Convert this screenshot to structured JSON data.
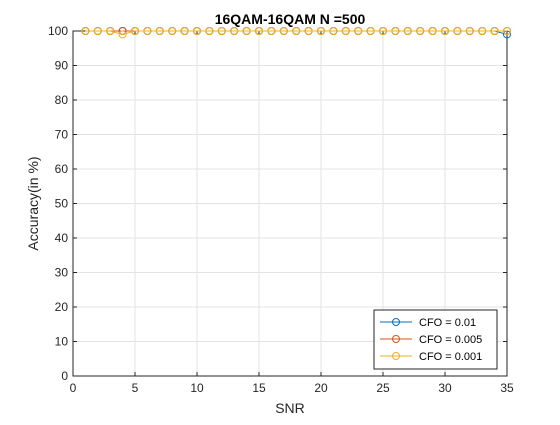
{
  "chart_data": {
    "type": "line",
    "title": "16QAM-16QAM N =500",
    "xlabel": "SNR",
    "ylabel": "Accuracy(in %)",
    "xlim": [
      0,
      35
    ],
    "ylim": [
      0,
      100
    ],
    "xticks": [
      0,
      5,
      10,
      15,
      20,
      25,
      30,
      35
    ],
    "yticks": [
      0,
      10,
      20,
      30,
      40,
      50,
      60,
      70,
      80,
      90,
      100
    ],
    "grid": true,
    "legend_position": "bottom-right",
    "marker": "circle",
    "x": [
      1,
      2,
      3,
      4,
      5,
      6,
      7,
      8,
      9,
      10,
      11,
      12,
      13,
      14,
      15,
      16,
      17,
      18,
      19,
      20,
      21,
      22,
      23,
      24,
      25,
      26,
      27,
      28,
      29,
      30,
      31,
      32,
      33,
      34,
      35
    ],
    "series": [
      {
        "name": "CFO = 0.01",
        "color": "#0072BD",
        "values": [
          100,
          100,
          100,
          100,
          100,
          100,
          100,
          100,
          100,
          100,
          100,
          100,
          100,
          100,
          100,
          100,
          100,
          100,
          100,
          100,
          100,
          100,
          100,
          100,
          100,
          100,
          100,
          100,
          100,
          100,
          100,
          100,
          100,
          100,
          99
        ]
      },
      {
        "name": "CFO = 0.005",
        "color": "#D95319",
        "values": [
          100,
          100,
          100,
          100,
          100,
          100,
          100,
          100,
          100,
          100,
          100,
          100,
          100,
          100,
          100,
          100,
          100,
          100,
          100,
          100,
          100,
          100,
          100,
          100,
          100,
          100,
          100,
          100,
          100,
          100,
          100,
          100,
          100,
          100,
          100
        ]
      },
      {
        "name": "CFO = 0.001",
        "color": "#EDB120",
        "values": [
          100,
          100,
          100,
          99,
          100,
          100,
          100,
          100,
          100,
          100,
          100,
          100,
          100,
          100,
          100,
          100,
          100,
          100,
          100,
          100,
          100,
          100,
          100,
          100,
          100,
          100,
          100,
          100,
          100,
          100,
          100,
          100,
          100,
          100,
          100
        ]
      }
    ]
  }
}
